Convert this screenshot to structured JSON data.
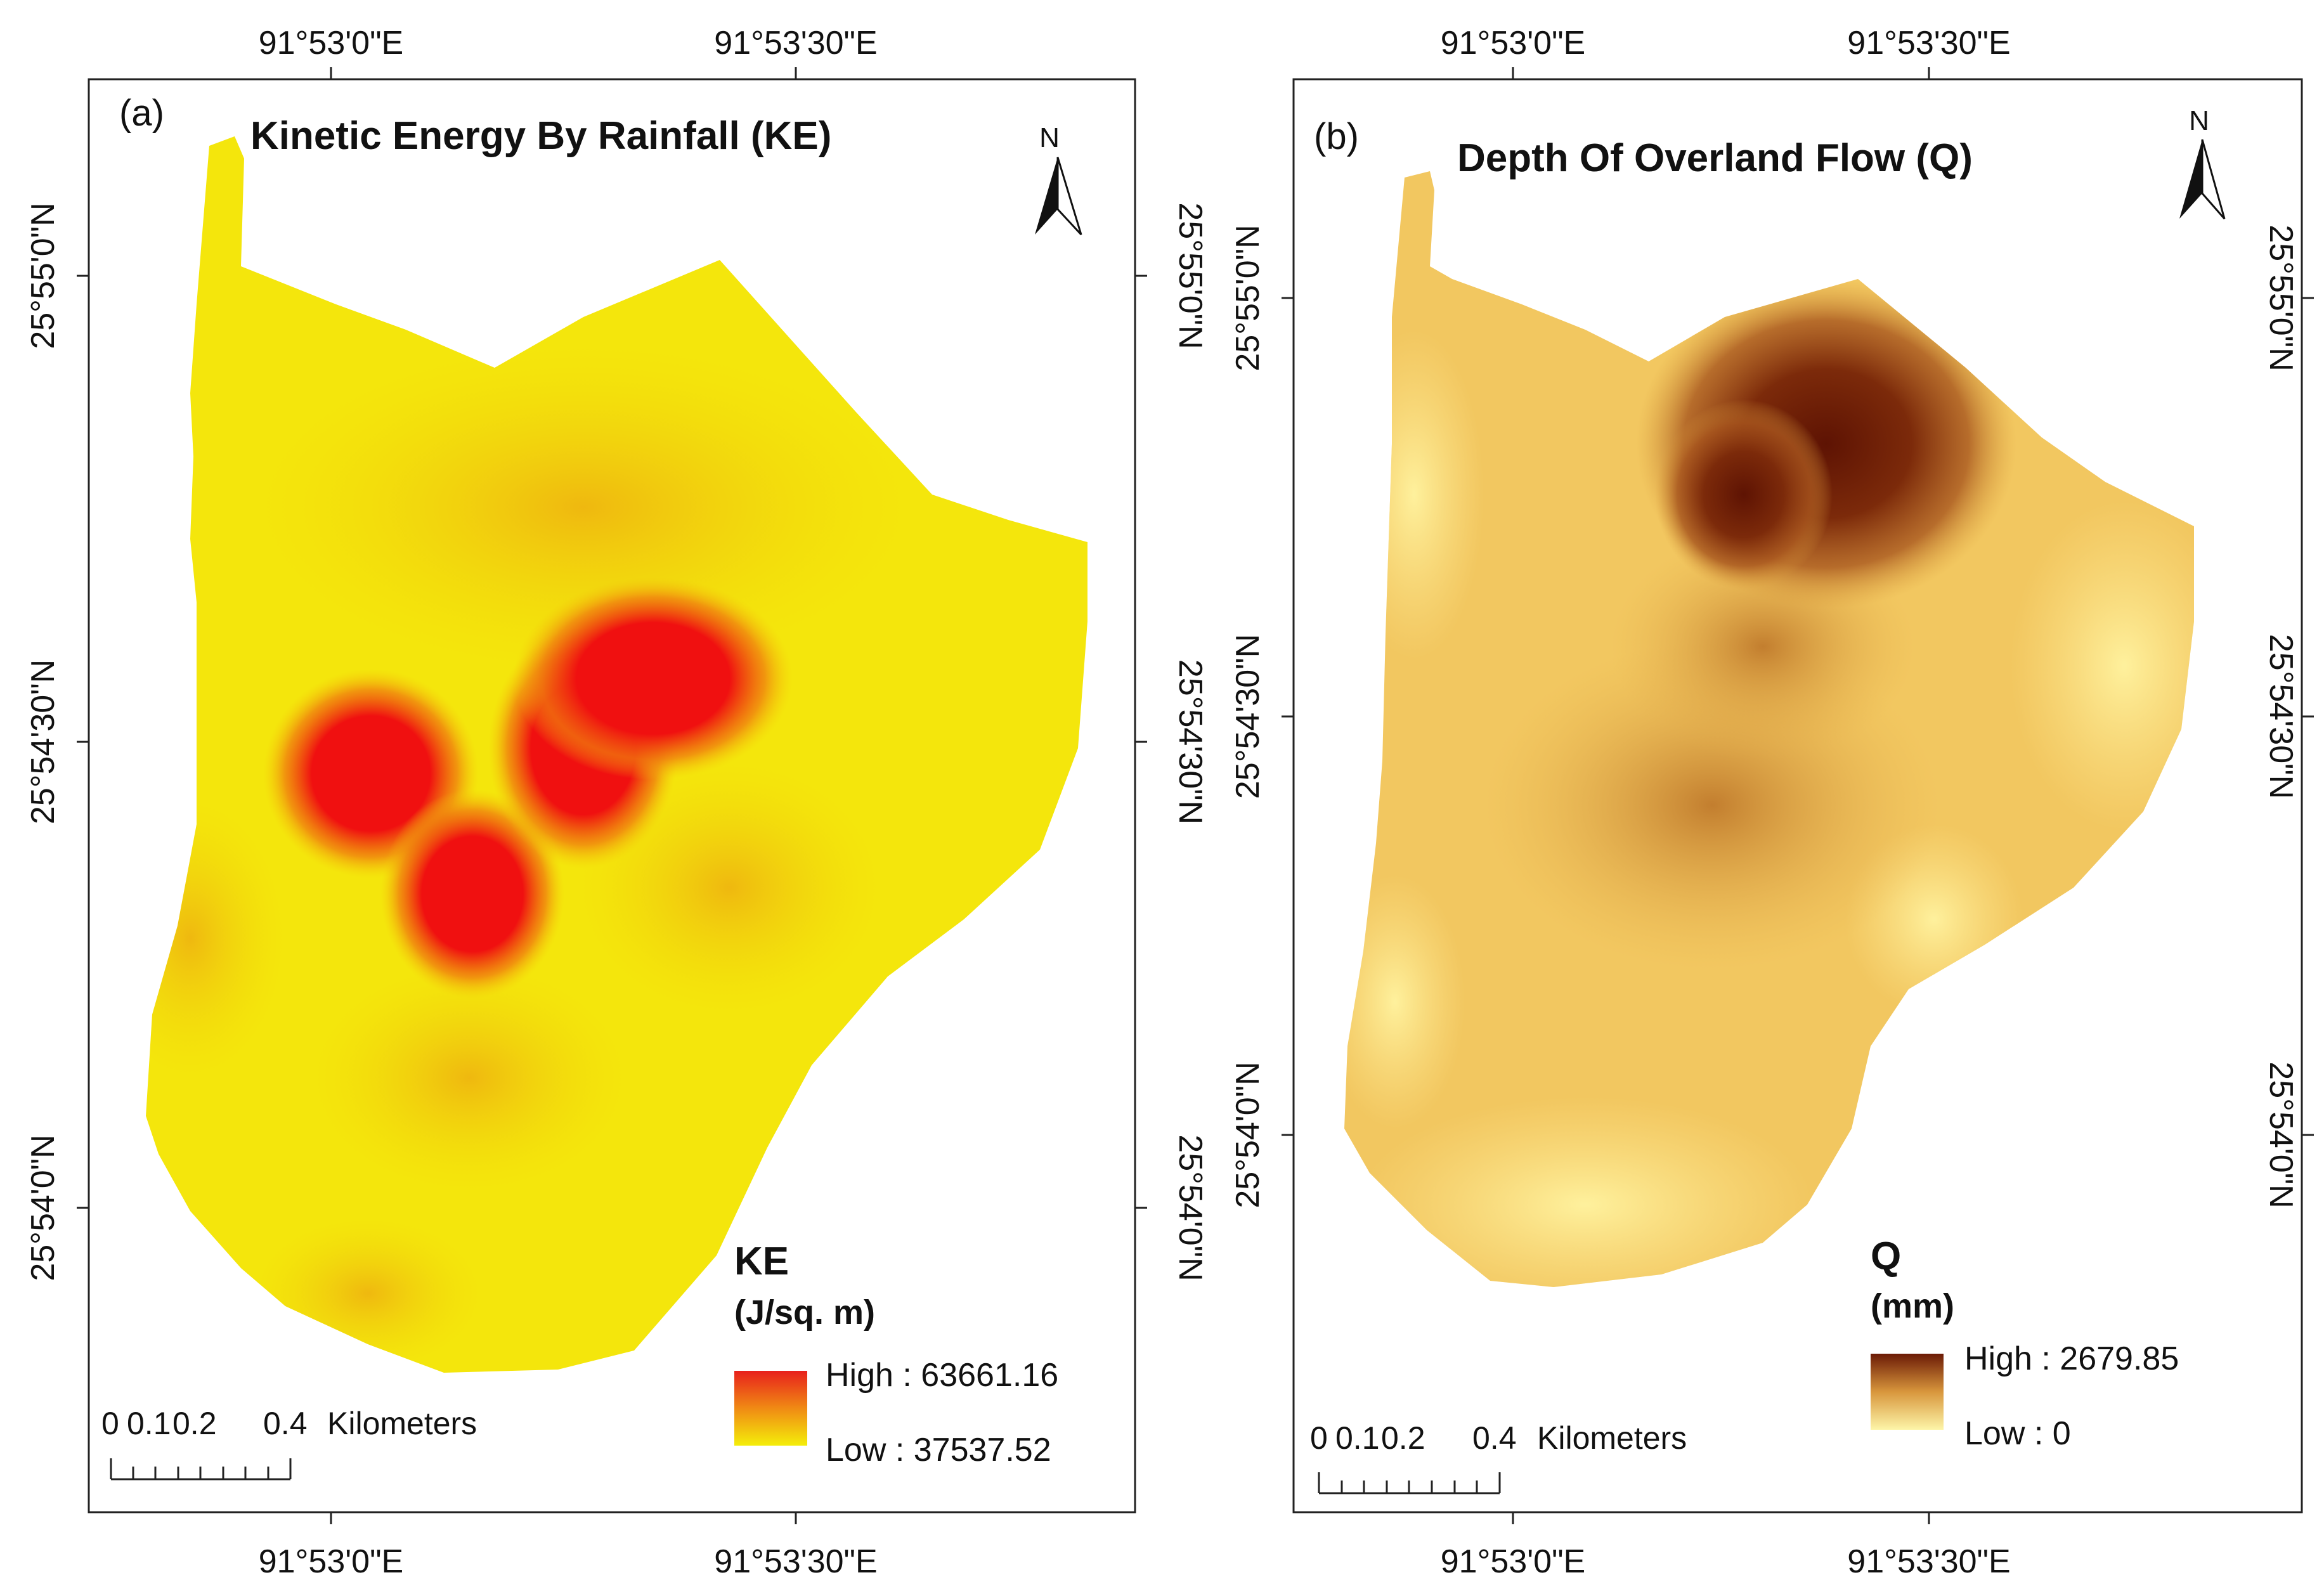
{
  "panels": [
    {
      "id": "a",
      "panel_label": "(a)",
      "title": "Kinetic Energy By Rainfall (KE)",
      "north": "N",
      "x_ticks": [
        "91°53'0\"E",
        "91°53'30\"E"
      ],
      "y_ticks": [
        "25°55'0\"N",
        "25°54'30\"N",
        "25°54'0\"N"
      ],
      "legend": {
        "title": "KE",
        "unit": "(J/sq. m)",
        "high": "High : 63661.16",
        "low": "Low : 37537.52",
        "color_high": "#e8201c",
        "color_low": "#f4ee0a"
      },
      "scale_bar": {
        "labels": [
          "0",
          "0.1",
          "0.2",
          "0.4"
        ],
        "unit": "Kilometers"
      }
    },
    {
      "id": "b",
      "panel_label": "(b)",
      "title": "Depth Of Overland Flow (Q)",
      "north": "N",
      "x_ticks": [
        "91°53'0\"E",
        "91°53'30\"E"
      ],
      "y_ticks": [
        "25°55'0\"N",
        "25°54'30\"N",
        "25°54'0\"N"
      ],
      "legend": {
        "title": "Q",
        "unit": "(mm)",
        "high": "High : 2679.85",
        "low": "Low : 0",
        "color_high": "#6b1a06",
        "color_low": "#fdf5a8"
      },
      "scale_bar": {
        "labels": [
          "0",
          "0.1",
          "0.2",
          "0.4"
        ],
        "unit": "Kilometers"
      }
    }
  ]
}
